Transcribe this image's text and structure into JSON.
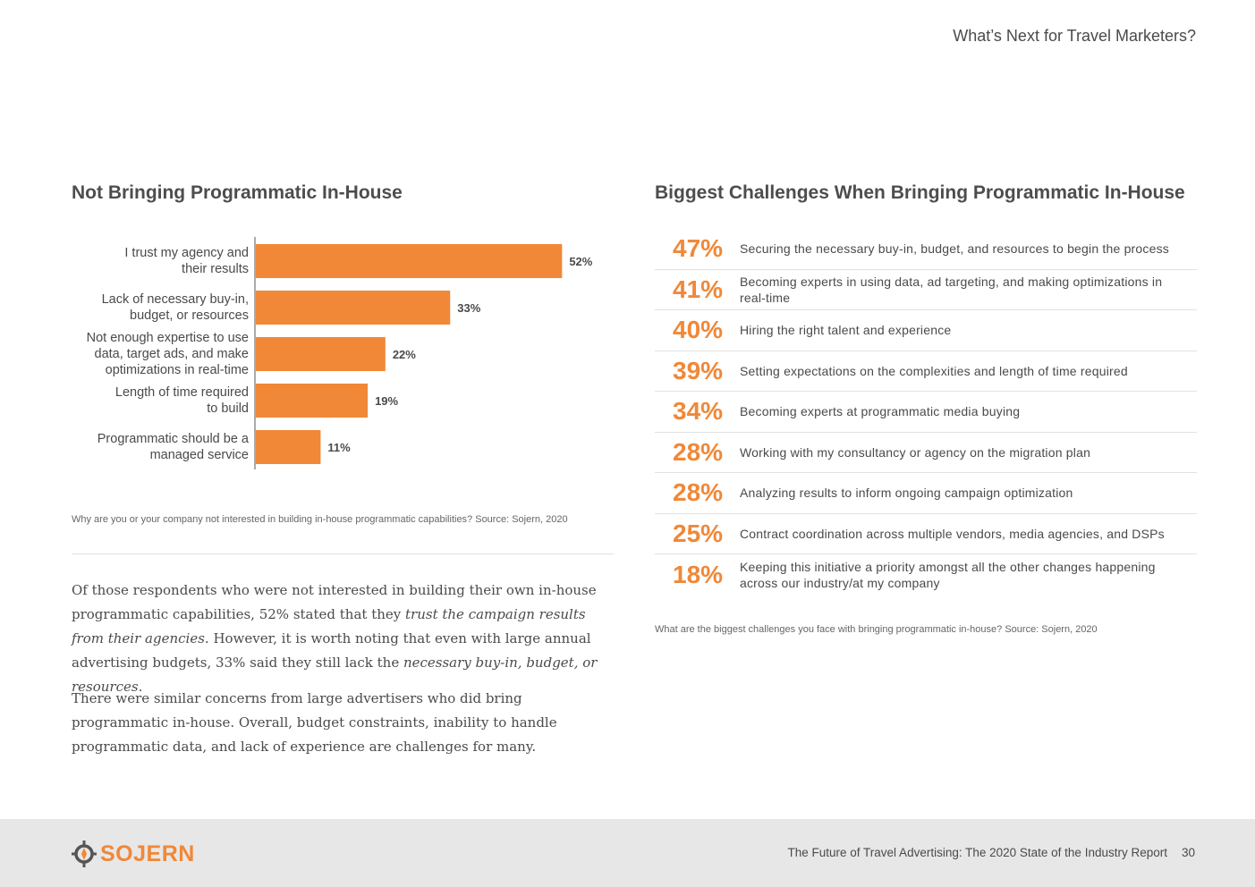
{
  "header": {
    "running_title": "What’s Next for Travel Marketers?"
  },
  "left": {
    "title": "Not Bringing Programmatic In-House",
    "note": "Why are you or your company not interested in building in-house programmatic capabilities? Source: Sojern, 2020"
  },
  "chart_data": {
    "type": "bar",
    "orientation": "horizontal",
    "title": "Not Bringing Programmatic In-House",
    "categories": [
      "I trust my agency and\ntheir results",
      "Lack of necessary buy-in,\nbudget, or resources",
      "Not enough expertise to use\ndata, target ads, and make\noptimizations in real-time",
      "Length of time required\nto build",
      "Programmatic should be a\nmanaged service"
    ],
    "values": [
      52,
      33,
      22,
      19,
      11
    ],
    "value_labels": [
      "52%",
      "33%",
      "22%",
      "19%",
      "11%"
    ],
    "unit": "%",
    "xlim": [
      0,
      60
    ],
    "bar_color": "#f08838"
  },
  "body": {
    "p1_a": "Of those respondents who were not interested in building their own in-house programmatic capabilities, 52% stated that they ",
    "p1_em1": "trust the campaign results from their agencies",
    "p1_b": ". However, it is worth noting that even with large annual advertising budgets, 33% said they still lack the ",
    "p1_em2": "necessary buy-in, budget, or resources",
    "p1_c": ".",
    "p2": "There were similar concerns from large advertisers who did bring programmatic in-house. Overall, budget constraints, inability to handle programmatic data, and lack of experience are challenges for many."
  },
  "right": {
    "title": "Biggest Challenges When Bringing Programmatic In-House",
    "items": [
      {
        "pct": "47%",
        "text": "Securing the necessary buy-in, budget, and resources to begin the process"
      },
      {
        "pct": "41%",
        "text": "Becoming experts in using data, ad targeting, and making optimizations in real-time"
      },
      {
        "pct": "40%",
        "text": "Hiring the right talent and experience"
      },
      {
        "pct": "39%",
        "text": "Setting expectations on the complexities and length of time required"
      },
      {
        "pct": "34%",
        "text": "Becoming experts at programmatic media buying"
      },
      {
        "pct": "28%",
        "text": "Working with my consultancy or agency on the migration plan"
      },
      {
        "pct": "28%",
        "text": "Analyzing results to inform ongoing campaign optimization"
      },
      {
        "pct": "25%",
        "text": "Contract coordination across multiple vendors, media agencies, and DSPs"
      },
      {
        "pct": "18%",
        "text": "Keeping this initiative a priority amongst all the other changes happening across our industry/at my company"
      }
    ],
    "note": "What are the biggest challenges you face with bringing programmatic in-house? Source: Sojern, 2020"
  },
  "footer": {
    "logo_text": "SOJERN",
    "logo_icon": "compass-icon",
    "report_title": "The Future of Travel Advertising: The 2020 State of the Industry Report",
    "page_number": "30"
  },
  "colors": {
    "accent": "#f08838",
    "footer_bg": "#e7e7e7",
    "text": "#4a4a4a"
  }
}
